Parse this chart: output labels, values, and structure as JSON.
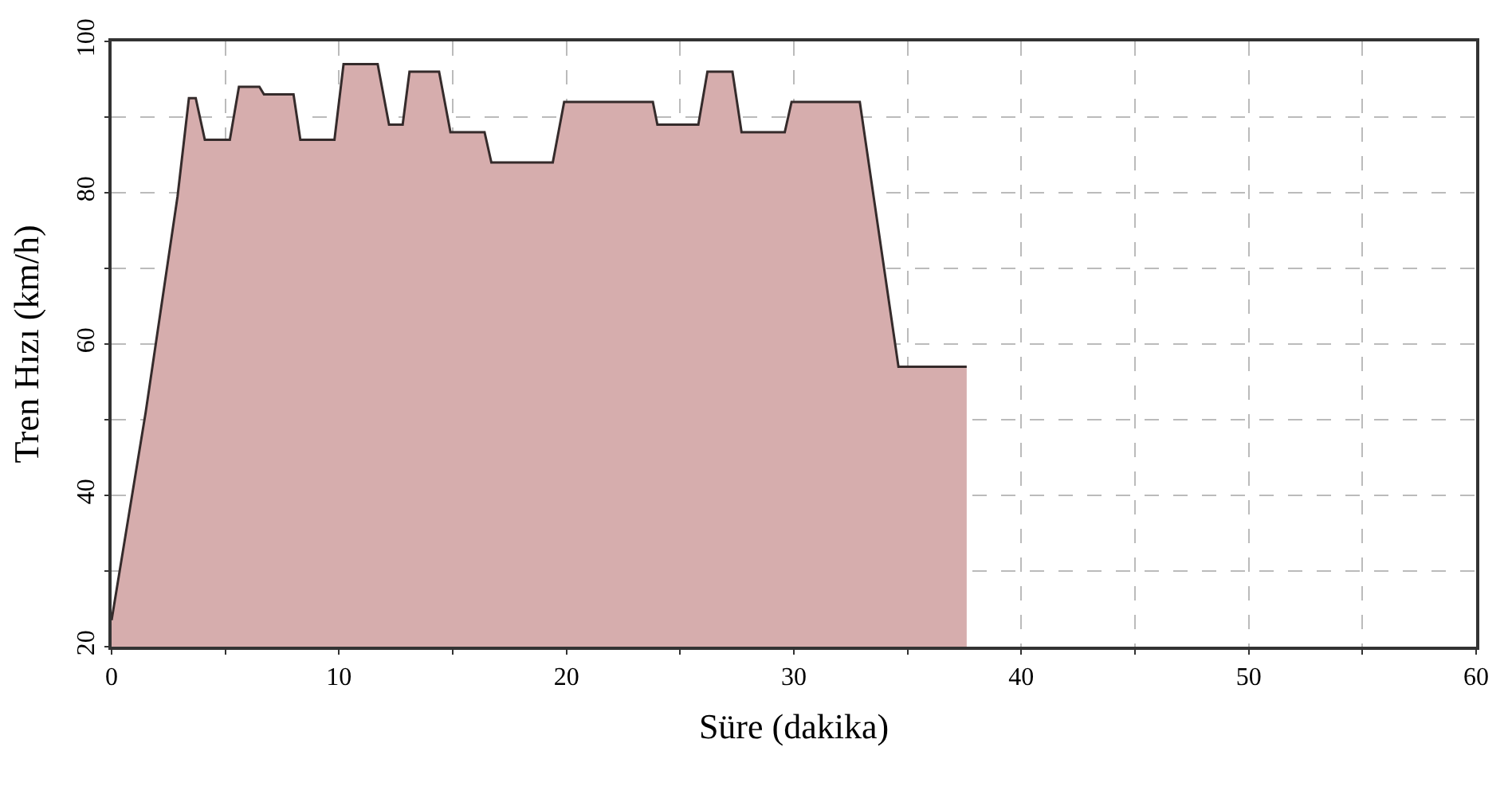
{
  "chart_data": {
    "type": "area",
    "xlabel": "Süre (dakika)",
    "ylabel": "Tren Hızı (km/h)",
    "xlim": [
      0,
      60
    ],
    "ylim": [
      20,
      100
    ],
    "xticks": [
      0,
      {
        "value": 5,
        "label": null
      },
      10,
      {
        "value": 15,
        "label": null
      },
      20,
      {
        "value": 25,
        "label": null
      },
      30,
      {
        "value": 35,
        "label": null
      },
      40,
      {
        "value": 45,
        "label": null
      },
      50,
      {
        "value": 55,
        "label": null
      },
      60
    ],
    "yticks": [
      20,
      {
        "value": 30,
        "label": null
      },
      40,
      {
        "value": 50,
        "label": null
      },
      60,
      {
        "value": 70,
        "label": null
      },
      80,
      {
        "value": 90,
        "label": null
      },
      100
    ],
    "grid": true,
    "marker": "none",
    "line_style": "solid",
    "series": [
      {
        "color": "#d6adad",
        "x": [
          0,
          1.5,
          2.9,
          3.4,
          3.7,
          4.1,
          5.2,
          5.6,
          6.5,
          6.7,
          8.0,
          8.3,
          9.8,
          10.2,
          11.7,
          12.2,
          12.8,
          13.1,
          14.4,
          14.9,
          16.4,
          16.7,
          19.4,
          19.9,
          23.8,
          24.0,
          25.8,
          26.2,
          27.3,
          27.7,
          29.6,
          29.9,
          32.9,
          34.6,
          37.6
        ],
        "values": [
          23.5,
          51,
          79.5,
          92.5,
          92.5,
          87,
          87,
          94,
          94,
          93,
          93,
          87,
          87,
          97,
          97,
          89,
          89,
          96,
          96,
          88,
          88,
          84,
          84,
          92,
          92,
          89,
          89,
          96,
          96,
          88,
          88,
          92,
          92,
          57,
          57
        ]
      }
    ]
  }
}
